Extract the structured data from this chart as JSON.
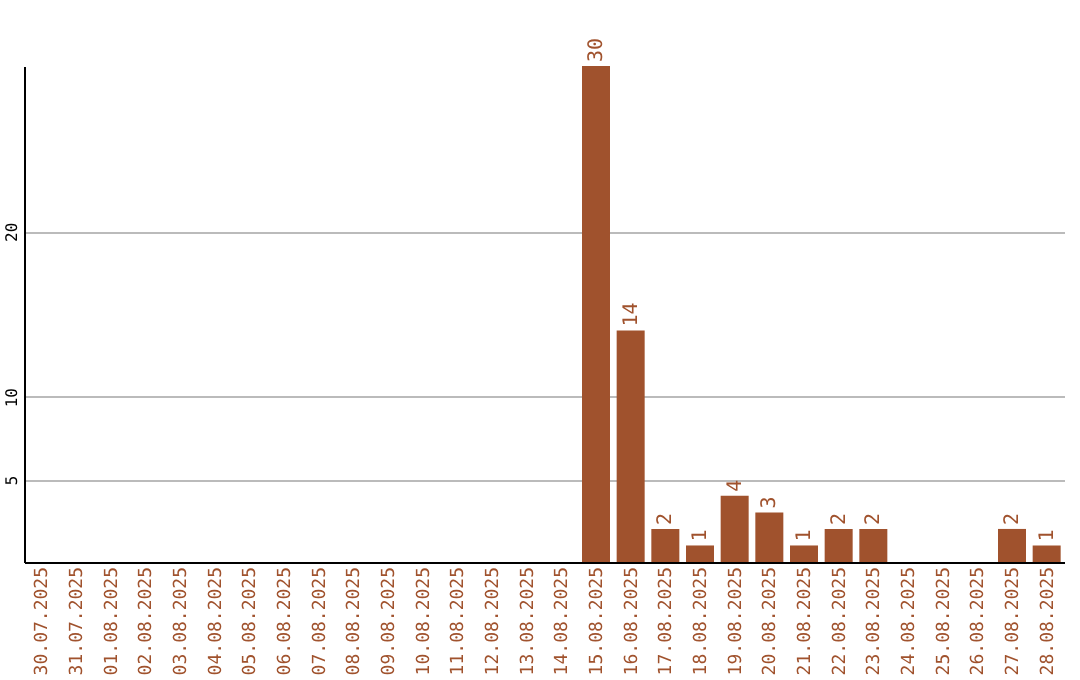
{
  "chart_data": {
    "type": "bar",
    "categories": [
      "30.07.2025",
      "31.07.2025",
      "01.08.2025",
      "02.08.2025",
      "03.08.2025",
      "04.08.2025",
      "05.08.2025",
      "06.08.2025",
      "07.08.2025",
      "08.08.2025",
      "09.08.2025",
      "10.08.2025",
      "11.08.2025",
      "12.08.2025",
      "13.08.2025",
      "14.08.2025",
      "15.08.2025",
      "16.08.2025",
      "17.08.2025",
      "18.08.2025",
      "19.08.2025",
      "20.08.2025",
      "21.08.2025",
      "22.08.2025",
      "23.08.2025",
      "24.08.2025",
      "25.08.2025",
      "26.08.2025",
      "27.08.2025",
      "28.08.2025"
    ],
    "values": [
      0,
      0,
      0,
      0,
      0,
      0,
      0,
      0,
      0,
      0,
      0,
      0,
      0,
      0,
      0,
      0,
      30,
      14,
      2,
      1,
      4,
      3,
      1,
      2,
      2,
      0,
      0,
      0,
      2,
      1
    ],
    "value_labels": [
      null,
      null,
      null,
      null,
      null,
      null,
      null,
      null,
      null,
      null,
      null,
      null,
      null,
      null,
      null,
      null,
      "30",
      "14",
      "2",
      "1",
      "4",
      "3",
      "1",
      "2",
      "2",
      null,
      null,
      null,
      "2",
      "1"
    ],
    "color": "#a0522d",
    "ylim": [
      0,
      30
    ],
    "yticks": [
      5,
      10,
      20
    ],
    "grid": "y"
  }
}
